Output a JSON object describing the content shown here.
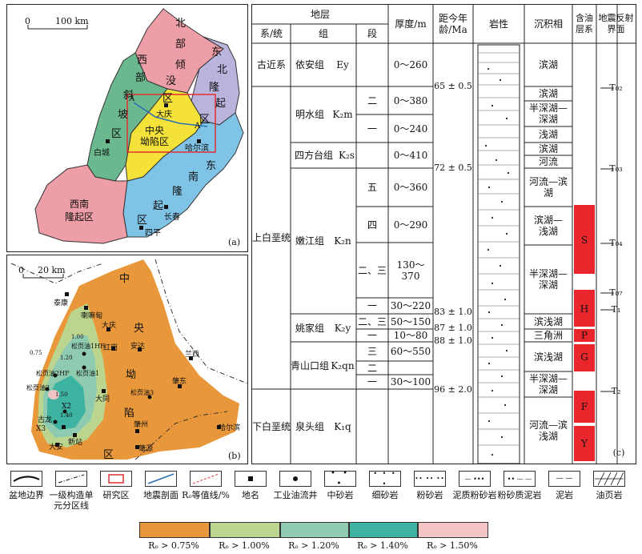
{
  "map_a": {
    "scale": {
      "zero": "0",
      "dist": "100 km"
    },
    "regions": {
      "north_slope": [
        "北",
        "部",
        "倾",
        "没",
        "区"
      ],
      "northeast_uplift": [
        "东",
        "北",
        "隆",
        "起",
        "区"
      ],
      "west_slope": [
        "西",
        "部",
        "斜",
        "坡",
        "区"
      ],
      "central": [
        "中央",
        "坳陷区"
      ],
      "southeast_uplift": [
        "东",
        "南",
        "隆",
        "起",
        "区"
      ],
      "southwest_uplift": [
        "西南",
        "隆起区"
      ]
    },
    "places": {
      "daqing": "大庆",
      "baicheng": "白城",
      "harbin": "哈尔滨",
      "changchun": "长春",
      "siping": "四平"
    },
    "section": {
      "a": "A",
      "a_prime": "A′"
    },
    "label": "(a)"
  },
  "map_b": {
    "scale": {
      "zero": "0",
      "dist": "20 km"
    },
    "zone_chars": [
      "中",
      "央",
      "坳",
      "陷",
      "区"
    ],
    "places": {
      "taikang": "泰康",
      "lalahong": "喇嘛甸",
      "daqing": "大庆",
      "honggang": "红岗",
      "anda": "安达",
      "lanxi": "兰西",
      "zhaodong": "肇东",
      "datong": "大同",
      "zhaozhou": "肇州",
      "zhaoyuan": "肇源",
      "gulong": "古龙",
      "xinzhan": "新站",
      "daan": "大安",
      "harbin": "哈尔滨"
    },
    "wells": {
      "w1hf": "松页油1HF",
      "w1": "松页油1",
      "w2hf": "松页油2HF",
      "w2": "松页油2",
      "w3": "松页油3",
      "x2": "X2",
      "x3": "X3"
    },
    "contours": [
      "1.50",
      "1.40",
      "1.20",
      "1.00",
      "0.75"
    ],
    "label": "(b)"
  },
  "strat": {
    "headers": {
      "strata": "地层",
      "system": "系/统",
      "formation": "组",
      "member": "段",
      "thickness": "厚度/m",
      "age": "距今年龄/Ma",
      "lithology": "岩性",
      "facies": "沉积相",
      "oil": "含油层系",
      "seismic": "地震反射界面"
    },
    "rows": [
      {
        "system": "古近系",
        "formation": "依安组",
        "code": "Ey",
        "members": [
          {
            "m": "",
            "t": "0～260"
          }
        ]
      },
      {
        "formation": "明水组",
        "code": "K₂m",
        "members": [
          {
            "m": "二",
            "t": "0～380"
          },
          {
            "m": "一",
            "t": "0～240"
          }
        ]
      },
      {
        "formation": "四方台组",
        "code": "K₂s",
        "members": [
          {
            "m": "",
            "t": "0～410"
          }
        ]
      },
      {
        "formation": "嫩江组",
        "code": "K₂n",
        "members": [
          {
            "m": "五",
            "t": "0～360"
          },
          {
            "m": "四",
            "t": "0～290"
          },
          {
            "m": "二、三",
            "t": "130～370"
          },
          {
            "m": "一",
            "t": "30～220"
          }
        ]
      },
      {
        "formation": "姚家组",
        "code": "K₂y",
        "members": [
          {
            "m": "二、三",
            "t": "50～150"
          },
          {
            "m": "一",
            "t": "10～80"
          }
        ]
      },
      {
        "formation": "青山口组",
        "code": "K₂qn",
        "members": [
          {
            "m": "三",
            "t": "60～550"
          },
          {
            "m": "二",
            "t": ""
          },
          {
            "m": "一",
            "t": "30～100"
          }
        ]
      },
      {
        "system": "下白垩统",
        "formation": "泉头组",
        "code": "K₁q",
        "members": [
          {
            "m": "",
            "t": ""
          }
        ]
      }
    ],
    "upper_system": "上白垩统",
    "ages": [
      "65 ± 0.5",
      "72 ± 0.5",
      "83 ± 1.0",
      "87 ± 1.0",
      "88 ± 1.0",
      "96 ± 2.0"
    ],
    "facies": [
      "滨湖",
      "滨湖",
      "半深湖—深湖",
      "浅湖",
      "滨湖",
      "河流",
      "河流—滨湖",
      "滨湖—浅湖",
      "半深湖—深湖",
      "滨浅湖",
      "三角洲",
      "滨浅湖",
      "半深湖—深湖",
      "河流—滨浅湖"
    ],
    "oil_layers": [
      "S",
      "H",
      "P",
      "G",
      "F",
      "Y"
    ],
    "seismic": [
      "T₀₂",
      "T₀₃",
      "T₀₄",
      "T₀₇",
      "T₁",
      "T₂"
    ],
    "label": "(c)"
  },
  "legend": {
    "items": [
      "盆地边界",
      "一级构造单元分区线",
      "研究区",
      "地震剖面",
      "Rₒ等值线/%",
      "地名",
      "工业油流井",
      "中砂岩",
      "细砂岩",
      "粉砂岩",
      "泥质粉砂岩",
      "粉砂质泥岩",
      "泥岩",
      "油页岩"
    ],
    "ro": [
      {
        "label": "Rₒ > 0.75%",
        "color": "#e8983a"
      },
      {
        "label": "Rₒ > 1.00%",
        "color": "#bcd58e"
      },
      {
        "label": "Rₒ > 1.20%",
        "color": "#8fcbb0"
      },
      {
        "label": "Rₒ > 1.40%",
        "color": "#3fb3a1"
      },
      {
        "label": "Rₒ > 1.50%",
        "color": "#f2c4c4"
      }
    ]
  }
}
